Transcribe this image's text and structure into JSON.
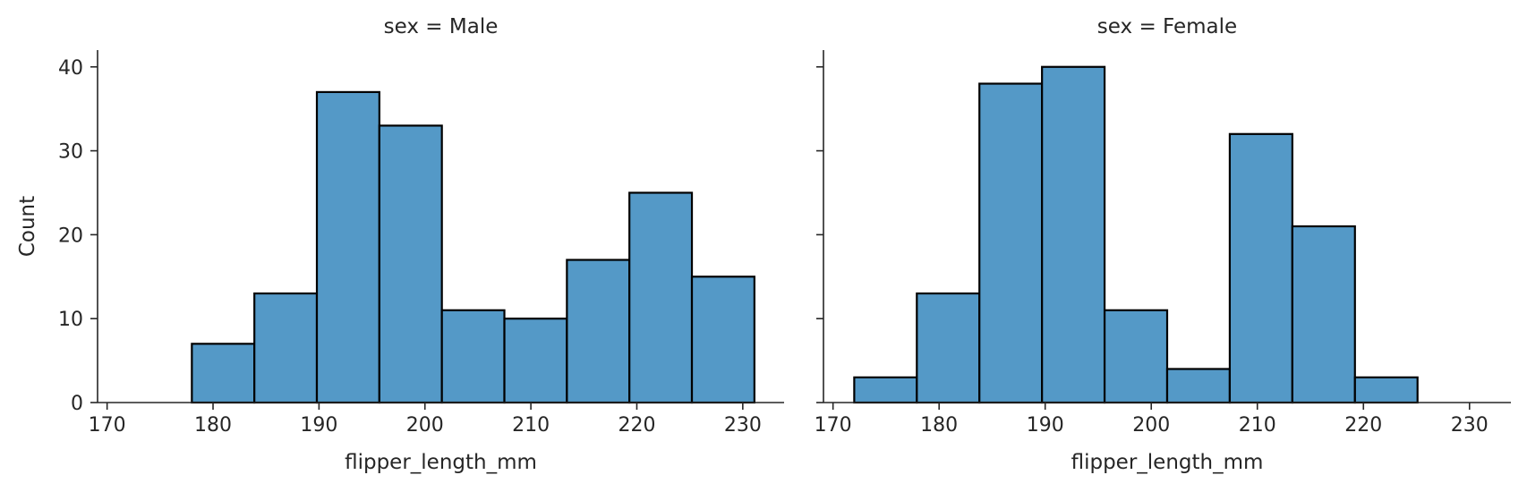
{
  "chart_data": [
    {
      "type": "bar",
      "title": "sex = Male",
      "xlabel": "flipper_length_mm",
      "ylabel": "Count",
      "xlim": [
        169.1,
        233.9
      ],
      "ylim": [
        0,
        42
      ],
      "xticks": [
        170,
        180,
        190,
        200,
        210,
        220,
        230
      ],
      "yticks": [
        0,
        10,
        20,
        30,
        40
      ],
      "bin_edges": [
        178.0,
        183.9,
        189.8,
        195.7,
        201.6,
        207.5,
        213.4,
        219.3,
        225.2,
        231.1
      ],
      "values": [
        7,
        13,
        37,
        33,
        11,
        10,
        17,
        25,
        15
      ],
      "color": "#5499c7",
      "grid": false
    },
    {
      "type": "bar",
      "title": "sex = Female",
      "xlabel": "flipper_length_mm",
      "ylabel": "",
      "xlim": [
        169.1,
        233.9
      ],
      "ylim": [
        0,
        42
      ],
      "xticks": [
        170,
        180,
        190,
        200,
        210,
        220,
        230
      ],
      "yticks": [
        0,
        10,
        20,
        30,
        40
      ],
      "bin_edges": [
        172.0,
        177.9,
        183.8,
        189.7,
        195.6,
        201.5,
        207.4,
        213.3,
        219.2,
        225.1
      ],
      "values": [
        3,
        13,
        38,
        40,
        11,
        4,
        32,
        21,
        3
      ],
      "color": "#5499c7",
      "grid": false
    }
  ]
}
